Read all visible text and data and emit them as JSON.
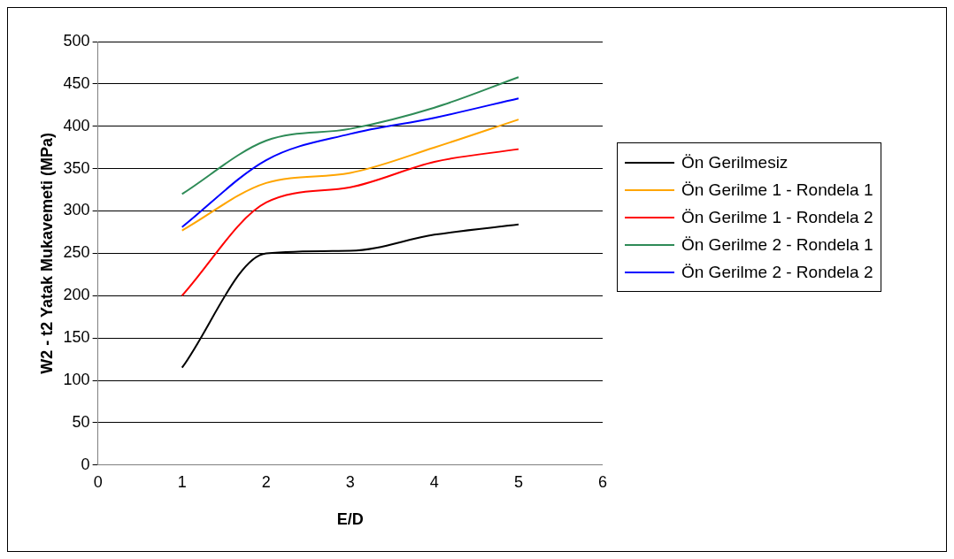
{
  "chart_data": {
    "type": "line",
    "xlabel": "E/D",
    "ylabel": "W2 - t2 Yatak Mukavemeti (MPa)",
    "x": [
      1,
      2,
      3,
      4,
      5
    ],
    "series": [
      {
        "name": "Ön Gerilmesiz",
        "color": "#000000",
        "values": [
          115,
          250,
          253,
          272,
          284
        ]
      },
      {
        "name": "Ön Gerilme 1 - Rondela 1",
        "color": "#ffa500",
        "values": [
          277,
          333,
          345,
          375,
          408
        ]
      },
      {
        "name": "Ön Gerilme 1 - Rondela 2",
        "color": "#ff0000",
        "values": [
          200,
          310,
          328,
          358,
          373
        ]
      },
      {
        "name": "Ön Gerilme 2 - Rondela 1",
        "color": "#2e8b57",
        "values": [
          320,
          383,
          397,
          422,
          458
        ]
      },
      {
        "name": "Ön Gerilme 2 - Rondela 2",
        "color": "#0000ff",
        "values": [
          281,
          360,
          391,
          410,
          433
        ]
      }
    ],
    "xlim": [
      0,
      6
    ],
    "xticks": [
      0,
      1,
      2,
      3,
      4,
      5,
      6
    ],
    "ylim": [
      0,
      500
    ],
    "yticks": [
      0,
      50,
      100,
      150,
      200,
      250,
      300,
      350,
      400,
      450,
      500
    ],
    "grid": "y",
    "legend": "right",
    "marker": "none",
    "line_style": "solid"
  }
}
